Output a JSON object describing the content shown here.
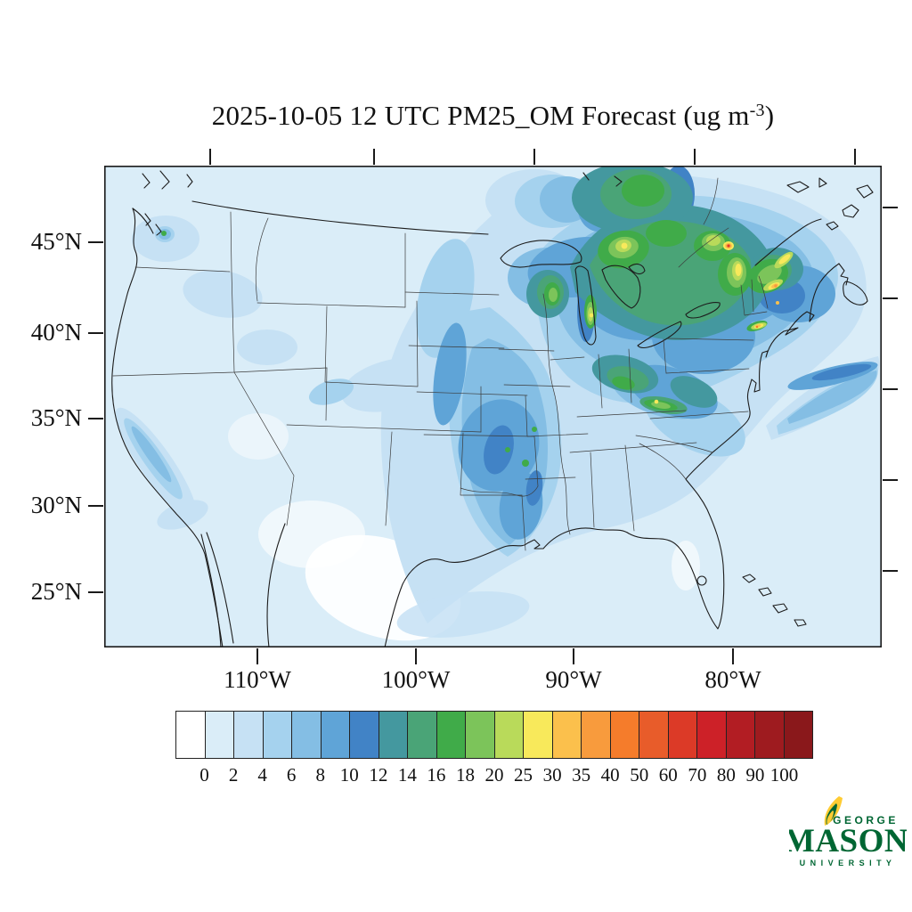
{
  "title": {
    "prefix": "2025-10-05 12 UTC PM25_OM Forecast (ug m",
    "superscript": "-3",
    "suffix": ")"
  },
  "axes": {
    "lat_labels": [
      "45°N",
      "40°N",
      "35°N",
      "30°N",
      "25°N"
    ],
    "lon_labels": [
      "110°W",
      "100°W",
      "90°W",
      "80°W"
    ]
  },
  "colorbar": {
    "levels": [
      "0",
      "2",
      "4",
      "6",
      "8",
      "10",
      "12",
      "14",
      "16",
      "18",
      "20",
      "25",
      "30",
      "35",
      "40",
      "50",
      "60",
      "70",
      "80",
      "90",
      "100"
    ],
    "colors": [
      "#FFFFFF",
      "#DAEDF8",
      "#C6E1F4",
      "#A5D2EE",
      "#84BEE4",
      "#5FA4D7",
      "#4183C6",
      "#44989F",
      "#4AA477",
      "#40AB49",
      "#7CC45A",
      "#B9DA5A",
      "#F8E95B",
      "#FBC04C",
      "#F89B3D",
      "#F57C2B",
      "#E85C2A",
      "#DC3A27",
      "#CD2128",
      "#B21D23",
      "#9E1B1F",
      "#8A181B"
    ]
  },
  "logo": {
    "line1": "GEORGE",
    "line2": "MASON",
    "line3": "U N I V E R S I T Y",
    "green": "#006633",
    "gold": "#FFCC33"
  },
  "chart_data": {
    "type": "heatmap",
    "title": "2025-10-05 12 UTC PM25_OM Forecast (ug m-3)",
    "variable": "PM25_OM",
    "valid_time": "2025-10-05 12 UTC",
    "units": "ug m-3",
    "region": "Continental United States with southern Canada, northern Mexico and western Atlantic",
    "x_tick_labels": [
      "110°W",
      "100°W",
      "90°W",
      "80°W"
    ],
    "y_tick_labels": [
      "45°N",
      "40°N",
      "35°N",
      "30°N",
      "25°N"
    ],
    "color_levels": [
      0,
      2,
      4,
      6,
      8,
      10,
      12,
      14,
      16,
      18,
      20,
      25,
      30,
      35,
      40,
      50,
      60,
      70,
      80,
      90,
      100
    ],
    "color_palette": [
      "#FFFFFF",
      "#DAEDF8",
      "#C6E1F4",
      "#A5D2EE",
      "#84BEE4",
      "#5FA4D7",
      "#4183C6",
      "#44989F",
      "#4AA477",
      "#40AB49",
      "#7CC45A",
      "#B9DA5A",
      "#F8E95B",
      "#FBC04C",
      "#F89B3D",
      "#F57C2B",
      "#E85C2A",
      "#DC3A27",
      "#CD2128",
      "#B21D23",
      "#9E1B1F",
      "#8A181B"
    ],
    "legend_position": "bottom",
    "grid": false,
    "observed_pattern": [
      {
        "region": "Western US (Pacific Northwest, Great Basin, Rockies)",
        "value_range_ug_m3": "0-4",
        "note": "lowest bin with small 2-6 patches; 6-12 spot near Puget Sound and along California Central Valley"
      },
      {
        "region": "Central Plains plume (KS/OK/AR/LA toward Gulf coast)",
        "value_range_ug_m3": "4-12"
      },
      {
        "region": "Upper Midwest / Great Lakes / Ohio Valley",
        "value_range_ug_m3": "8-20",
        "note": "green 16-20 patches over Wisconsin, Michigan, Kentucky-Tennessee"
      },
      {
        "region": "Southeastern Canada (Ontario/Quebec) and New England",
        "value_range_ug_m3": "12-30",
        "note": "broad teal-green maximum with yellow 25-30 streaks over Vermont/New Hampshire/Maine"
      },
      {
        "region": "Hotspots: southern Quebec, coastal Maine, New York City / Long Island",
        "value_range_ug_m3": "30-70"
      },
      {
        "region": "Southeast US, Florida, Gulf of Mexico, southwestern deserts",
        "value_range_ug_m3": "0-2"
      },
      {
        "region": "Atlantic band east of New England / Nova Scotia",
        "value_range_ug_m3": "4-12"
      }
    ]
  }
}
